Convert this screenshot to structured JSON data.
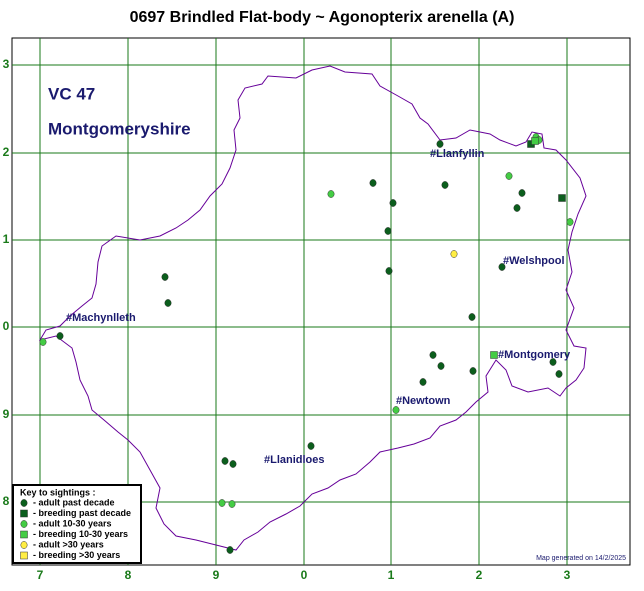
{
  "title": "0697 Brindled Flat-body ~ Agonopterix arenella (A)",
  "vice_county": {
    "code": "VC 47",
    "name": "Montgomeryshire"
  },
  "grid": {
    "x_labels": [
      "7",
      "8",
      "9",
      "0",
      "1",
      "2",
      "3"
    ],
    "y_labels": [
      "3",
      "2",
      "1",
      "0",
      "9",
      "8"
    ]
  },
  "places": [
    "#Llanfyllin",
    "#Welshpool",
    "#Machynlleth",
    "#Montgomery",
    "#Newtown",
    "#Llanidloes"
  ],
  "key": {
    "title": "Key to sightings :",
    "entries": [
      {
        "label": "- adult past decade",
        "color": "#0b5e1c",
        "shape": "circle"
      },
      {
        "label": "- breeding past decade",
        "color": "#0b5e1c",
        "shape": "square"
      },
      {
        "label": "- adult 10-30 years",
        "color": "#44cc44",
        "shape": "circle"
      },
      {
        "label": "- breeding 10-30 years",
        "color": "#44cc44",
        "shape": "square"
      },
      {
        "label": "- adult >30 years",
        "color": "#ffee44",
        "shape": "circle"
      },
      {
        "label": "- breeding >30 years",
        "color": "#ffee44",
        "shape": "square"
      }
    ]
  },
  "footer": "Map generated on 14/2/2025"
}
